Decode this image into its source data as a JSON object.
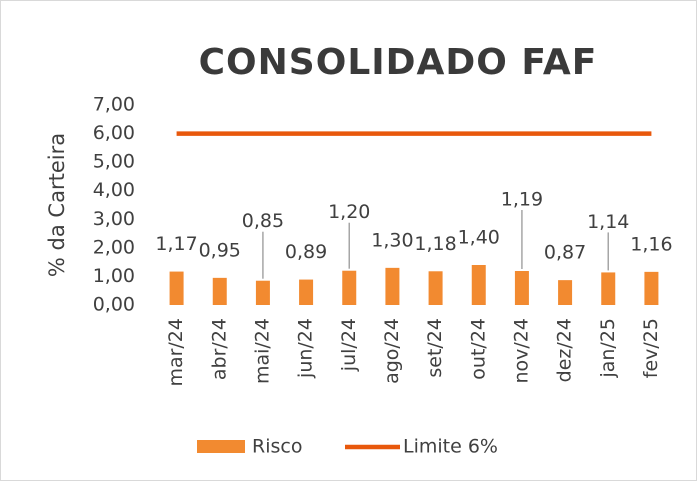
{
  "chart_data": {
    "type": "bar",
    "title": "CONSOLIDADO FAF",
    "y_label": "% da Carteira",
    "categories": [
      "mar/24",
      "abr/24",
      "mai/24",
      "jun/24",
      "jul/24",
      "ago/24",
      "set/24",
      "out/24",
      "nov/24",
      "dez/24",
      "jan/25",
      "fev/25"
    ],
    "series": [
      {
        "name": "Risco",
        "type": "bar",
        "color": "#f28a30",
        "values": [
          1.17,
          0.95,
          0.85,
          0.89,
          1.2,
          1.3,
          1.18,
          1.4,
          1.19,
          0.87,
          1.14,
          1.16
        ],
        "value_labels": [
          "1,17",
          "0,95",
          "0,85",
          "0,89",
          "1,20",
          "1,30",
          "1,18",
          "1,40",
          "1,19",
          "0,87",
          "1,14",
          "1,16"
        ]
      },
      {
        "name": "Limite 6%",
        "type": "line",
        "color": "#e8580c",
        "values": [
          6,
          6,
          6,
          6,
          6,
          6,
          6,
          6,
          6,
          6,
          6,
          6
        ]
      }
    ],
    "ylim": [
      0,
      7
    ],
    "yticks": [
      {
        "value": 0,
        "label": "0,00"
      },
      {
        "value": 1,
        "label": "1,00"
      },
      {
        "value": 2,
        "label": "2,00"
      },
      {
        "value": 3,
        "label": "3,00"
      },
      {
        "value": 4,
        "label": "4,00"
      },
      {
        "value": 5,
        "label": "5,00"
      },
      {
        "value": 6,
        "label": "6,00"
      },
      {
        "value": 7,
        "label": "7,00"
      }
    ],
    "legend": "bottom"
  }
}
